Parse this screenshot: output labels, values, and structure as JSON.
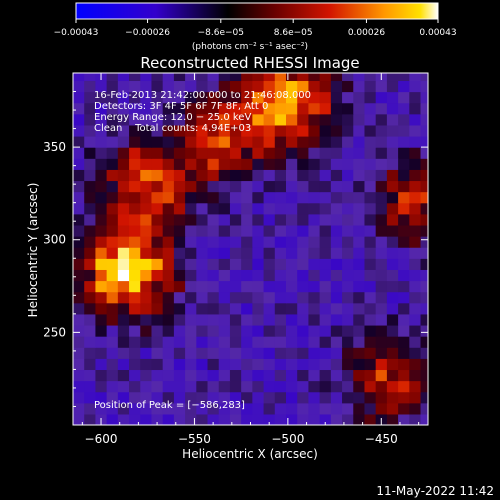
{
  "chart_data": {
    "type": "heatmap",
    "title": "Reconstructed RHESSI Image",
    "xlabel": "Heliocentric X (arcsec)",
    "ylabel": "Heliocentric Y (arcsec)",
    "xlim": [
      -615,
      -425
    ],
    "ylim": [
      200,
      390
    ],
    "xticks": [
      -600,
      -550,
      -500,
      -450
    ],
    "xtick_labels": [
      "−600",
      "−550",
      "−500",
      "−450"
    ],
    "yticks": [
      250,
      300,
      350
    ],
    "ytick_labels": [
      "250",
      "300",
      "350"
    ],
    "colorbar": {
      "range": [
        -0.00043,
        0.00043
      ],
      "ticks": [
        -0.00043,
        -0.00026,
        -8.6e-05,
        8.6e-05,
        0.00026,
        0.00043
      ],
      "tick_labels": [
        "−0.00043",
        "−0.00026",
        "−8.6e−05",
        "8.6e−05",
        "0.00026",
        "0.00043"
      ],
      "unit_label": "(photons cm⁻² s⁻¹ asec⁻²)",
      "colors": [
        "#0000ff",
        "#2b00c8",
        "#000000",
        "#5a0000",
        "#c81400",
        "#ff8c00",
        "#ffd200",
        "#ffffff"
      ]
    },
    "annotations": {
      "time_range": "16‑Feb‑2013 21:42:00.000 to 21:46:08.000",
      "detectors": "Detectors: 3F 4F 5F 6F 7F 8F, Att 0",
      "energy_range": "Energy Range: 12.0 − 25.0 keV",
      "method_counts": "Clean    Total counts: 4.94E+03",
      "peak": "Position of Peak = [−586,283]"
    },
    "bright_regions": [
      {
        "x": -586,
        "y": 283,
        "level": 1.0
      },
      {
        "x": -575,
        "y": 330,
        "level": 0.7
      },
      {
        "x": -535,
        "y": 355,
        "level": 0.6
      },
      {
        "x": -500,
        "y": 375,
        "level": 0.85
      },
      {
        "x": -445,
        "y": 225,
        "level": 0.55
      },
      {
        "x": -430,
        "y": 320,
        "level": 0.5
      }
    ]
  },
  "footer": {
    "timestamp": "11‑May‑2022 11:42"
  }
}
